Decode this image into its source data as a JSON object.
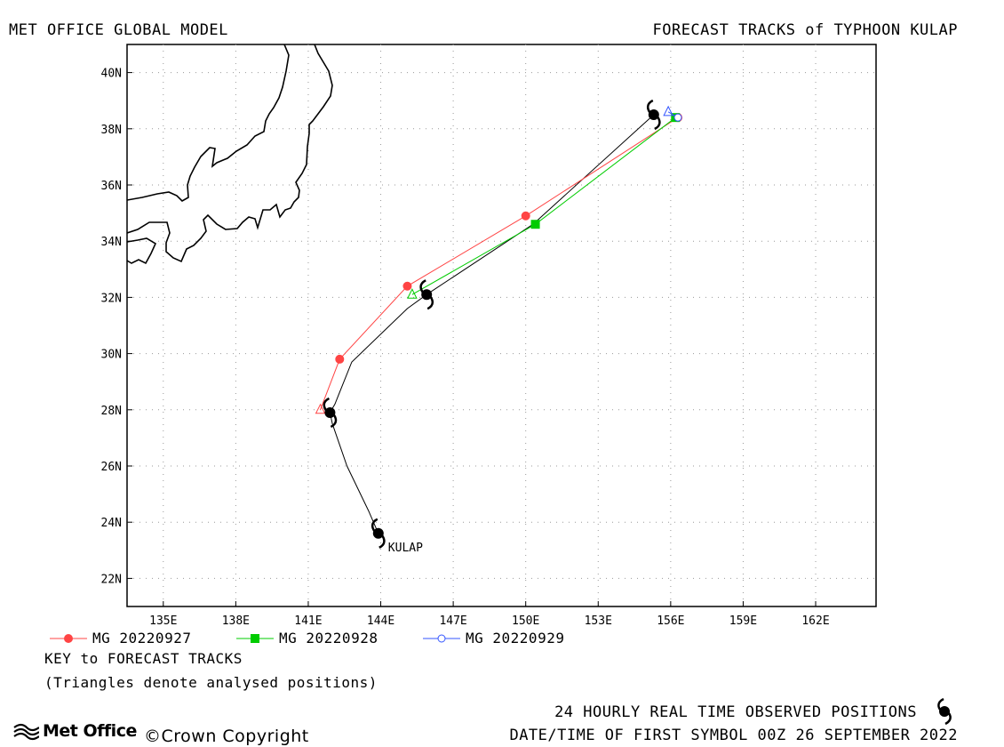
{
  "header": {
    "left_title": "MET OFFICE GLOBAL MODEL",
    "right_title": "FORECAST TRACKS of TYPHOON KULAP"
  },
  "map": {
    "lon_range": [
      133.5,
      164.5
    ],
    "lat_range": [
      21,
      41
    ],
    "lon_ticks": [
      135,
      138,
      141,
      144,
      147,
      150,
      153,
      156,
      159,
      162
    ],
    "lat_ticks": [
      22,
      24,
      26,
      28,
      30,
      32,
      34,
      36,
      38,
      40
    ],
    "lon_tick_labels": [
      "135E",
      "138E",
      "141E",
      "144E",
      "147E",
      "150E",
      "153E",
      "156E",
      "159E",
      "162E"
    ],
    "lat_tick_labels": [
      "22N",
      "24N",
      "26N",
      "28N",
      "30N",
      "32N",
      "34N",
      "36N",
      "38N",
      "40N"
    ],
    "grid": "dotted"
  },
  "observed_track": {
    "label": "KULAP",
    "color": "#000000",
    "points": [
      [
        143.9,
        23.6
      ],
      [
        143.5,
        24.4
      ],
      [
        142.6,
        26.0
      ],
      [
        142.0,
        27.5
      ],
      [
        141.9,
        27.9
      ],
      [
        142.1,
        28.2
      ],
      [
        142.8,
        29.7
      ],
      [
        145.1,
        31.6
      ],
      [
        145.9,
        32.1
      ],
      [
        150.3,
        34.6
      ],
      [
        155.3,
        38.5
      ]
    ],
    "symbol_positions": [
      [
        143.9,
        23.6
      ],
      [
        141.9,
        27.9
      ],
      [
        145.9,
        32.1
      ],
      [
        155.3,
        38.5
      ]
    ]
  },
  "forecast_tracks": [
    {
      "name": "MG 20220927",
      "color": "#ff4444",
      "marker": "circle",
      "points": [
        [
          141.5,
          28.0
        ],
        [
          142.3,
          29.8
        ],
        [
          145.1,
          32.4
        ],
        [
          150.0,
          34.9
        ],
        [
          156.3,
          38.4
        ]
      ]
    },
    {
      "name": "MG 20220928",
      "color": "#00cc00",
      "marker": "square",
      "points": [
        [
          145.3,
          32.1
        ],
        [
          150.4,
          34.6
        ],
        [
          156.2,
          38.4
        ]
      ]
    },
    {
      "name": "MG 20220929",
      "color": "#3355ff",
      "marker": "circle-open",
      "points": [
        [
          155.9,
          38.6
        ],
        [
          156.3,
          38.4
        ]
      ]
    }
  ],
  "legend": {
    "key_heading": "KEY to FORECAST TRACKS",
    "key_note": "(Triangles denote analysed positions)"
  },
  "footer": {
    "observed_label": "24 HOURLY REAL TIME OBSERVED POSITIONS",
    "first_symbol": "DATE/TIME OF FIRST SYMBOL 00Z 26 SEPTEMBER 2022",
    "org_name": "Met Office",
    "copyright": "©Crown Copyright"
  }
}
